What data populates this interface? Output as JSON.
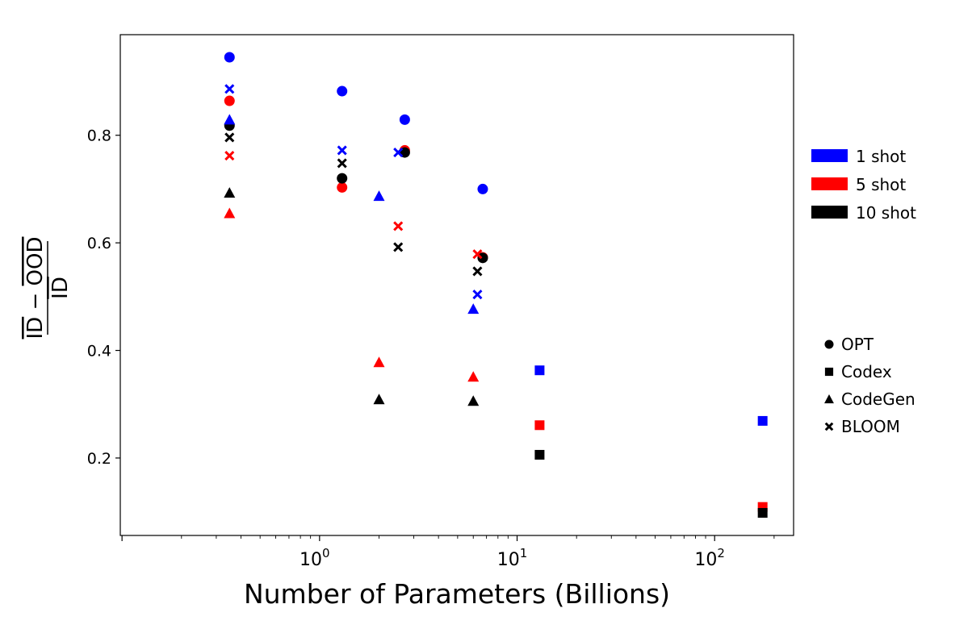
{
  "chart_data": {
    "type": "scatter",
    "title": "",
    "xlabel": "Number of Parameters (Billions)",
    "ylabel_numerator": "ID − OOD",
    "ylabel_numerator_parts": [
      "ID",
      " − ",
      "OOD"
    ],
    "ylabel_denominator": "ID",
    "xscale": "log",
    "xlim": [
      0.098,
      251
    ],
    "ylim": [
      0.056,
      0.987
    ],
    "x_ticks": [
      {
        "value": 1,
        "base": "10",
        "exp": "0"
      },
      {
        "value": 10,
        "base": "10",
        "exp": "1"
      },
      {
        "value": 100,
        "base": "10",
        "exp": "2"
      }
    ],
    "y_ticks": [
      "0.2",
      "0.4",
      "0.6",
      "0.8"
    ],
    "grid": false,
    "legend_colors": {
      "placement": "right",
      "entries": [
        {
          "label": "1 shot",
          "color": "#0000ff"
        },
        {
          "label": "5 shot",
          "color": "#ff0000"
        },
        {
          "label": "10 shot",
          "color": "#000000"
        }
      ]
    },
    "legend_markers": {
      "placement": "right",
      "entries": [
        {
          "label": "OPT",
          "marker": "circle"
        },
        {
          "label": "Codex",
          "marker": "square"
        },
        {
          "label": "CodeGen",
          "marker": "triangle"
        },
        {
          "label": "BLOOM",
          "marker": "x"
        }
      ]
    },
    "series": [
      {
        "model": "OPT",
        "shot": "1 shot",
        "marker": "circle",
        "color": "#0000ff",
        "x": [
          0.35,
          1.3,
          2.7,
          6.7
        ],
        "y": [
          0.945,
          0.882,
          0.829,
          0.7
        ]
      },
      {
        "model": "OPT",
        "shot": "5 shot",
        "marker": "circle",
        "color": "#ff0000",
        "x": [
          0.35,
          1.3,
          2.7,
          6.7
        ],
        "y": [
          0.864,
          0.703,
          0.772,
          0.573
        ]
      },
      {
        "model": "OPT",
        "shot": "10 shot",
        "marker": "circle",
        "color": "#000000",
        "x": [
          0.35,
          1.3,
          2.7,
          6.7
        ],
        "y": [
          0.818,
          0.72,
          0.768,
          0.572
        ]
      },
      {
        "model": "Codex",
        "shot": "1 shot",
        "marker": "square",
        "color": "#0000ff",
        "x": [
          13,
          175
        ],
        "y": [
          0.363,
          0.269
        ]
      },
      {
        "model": "Codex",
        "shot": "5 shot",
        "marker": "square",
        "color": "#ff0000",
        "x": [
          13,
          175
        ],
        "y": [
          0.261,
          0.109
        ]
      },
      {
        "model": "Codex",
        "shot": "10 shot",
        "marker": "square",
        "color": "#000000",
        "x": [
          13,
          175
        ],
        "y": [
          0.206,
          0.098
        ]
      },
      {
        "model": "CodeGen",
        "shot": "1 shot",
        "marker": "triangle",
        "color": "#0000ff",
        "x": [
          0.35,
          2.0,
          6.0
        ],
        "y": [
          0.829,
          0.687,
          0.477
        ]
      },
      {
        "model": "CodeGen",
        "shot": "5 shot",
        "marker": "triangle",
        "color": "#ff0000",
        "x": [
          0.35,
          2.0,
          6.0
        ],
        "y": [
          0.655,
          0.378,
          0.351
        ]
      },
      {
        "model": "CodeGen",
        "shot": "10 shot",
        "marker": "triangle",
        "color": "#000000",
        "x": [
          0.35,
          2.0,
          6.0
        ],
        "y": [
          0.693,
          0.309,
          0.306
        ]
      },
      {
        "model": "BLOOM",
        "shot": "1 shot",
        "marker": "x",
        "color": "#0000ff",
        "x": [
          0.35,
          1.3,
          2.5,
          6.3
        ],
        "y": [
          0.886,
          0.772,
          0.768,
          0.504
        ]
      },
      {
        "model": "BLOOM",
        "shot": "5 shot",
        "marker": "x",
        "color": "#ff0000",
        "x": [
          0.35,
          2.5,
          6.3
        ],
        "y": [
          0.762,
          0.631,
          0.579
        ]
      },
      {
        "model": "BLOOM",
        "shot": "10 shot",
        "marker": "x",
        "color": "#000000",
        "x": [
          0.35,
          1.3,
          2.5,
          6.3
        ],
        "y": [
          0.796,
          0.748,
          0.592,
          0.547
        ]
      }
    ]
  }
}
